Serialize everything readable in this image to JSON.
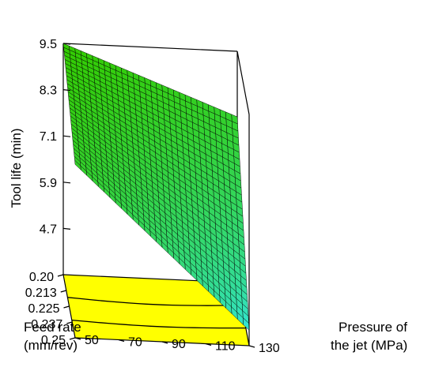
{
  "chart_data": {
    "type": "surface3d",
    "title": "",
    "z_axis": {
      "label": "Tool life (min)",
      "ticks": [
        "4.7",
        "5.9",
        "7.1",
        "8.3",
        "9.5"
      ],
      "range": [
        3.5,
        9.5
      ]
    },
    "x_axis": {
      "label_line1": "Feed rate",
      "label_line2": "(mm/rev)",
      "ticks": [
        "0.20",
        "0.213",
        "0.225",
        "0.237",
        "0.25"
      ],
      "range": [
        0.2,
        0.25
      ]
    },
    "y_axis": {
      "label_line1": "Pressure of",
      "label_line2": "the jet (MPa)",
      "ticks": [
        "50",
        "70",
        "90",
        "110",
        "130"
      ],
      "range": [
        50,
        130
      ]
    },
    "surface_corners": [
      {
        "feed_rate": 0.2,
        "pressure": 50,
        "tool_life": 9.5
      },
      {
        "feed_rate": 0.25,
        "pressure": 50,
        "tool_life": 8.0
      },
      {
        "feed_rate": 0.2,
        "pressure": 130,
        "tool_life": 7.8
      },
      {
        "feed_rate": 0.25,
        "pressure": 130,
        "tool_life": 3.9
      }
    ],
    "grid_divisions": 30,
    "colors": {
      "surface_high": "#33cc00",
      "surface_low": "#33e6e6",
      "floor_contour": "#ffff00",
      "mesh_line": "#000000"
    }
  }
}
